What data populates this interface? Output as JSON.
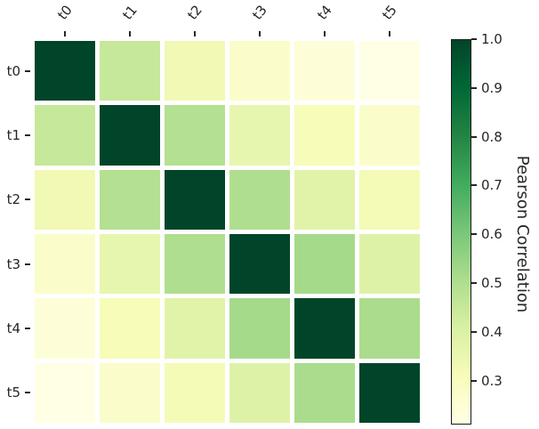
{
  "figure": {
    "background": "#ffffff",
    "text_color": "#262626"
  },
  "chart_data": {
    "type": "heatmap",
    "title": "",
    "x_labels": [
      "t0",
      "t1",
      "t2",
      "t3",
      "t4",
      "t5"
    ],
    "y_labels": [
      "t0",
      "t1",
      "t2",
      "t3",
      "t4",
      "t5"
    ],
    "matrix": [
      [
        1.0,
        0.45,
        0.33,
        0.27,
        0.24,
        0.21
      ],
      [
        0.45,
        1.0,
        0.49,
        0.36,
        0.31,
        0.27
      ],
      [
        0.33,
        0.49,
        1.0,
        0.5,
        0.38,
        0.32
      ],
      [
        0.27,
        0.36,
        0.5,
        1.0,
        0.52,
        0.39
      ],
      [
        0.24,
        0.31,
        0.38,
        0.52,
        1.0,
        0.51
      ],
      [
        0.21,
        0.27,
        0.32,
        0.39,
        0.51,
        1.0
      ]
    ],
    "vmin": 0.21,
    "vmax": 1.0,
    "colormap": {
      "name": "YlGn",
      "anchors": [
        "#ffffe5",
        "#f7fcb9",
        "#d9f0a3",
        "#addd8e",
        "#78c679",
        "#41ab5d",
        "#238443",
        "#006837",
        "#004529"
      ]
    },
    "colorbar": {
      "label": "Pearson Correlation",
      "tick_labels": [
        "1.0",
        "0.9",
        "0.8",
        "0.7",
        "0.6",
        "0.5",
        "0.4",
        "0.3"
      ],
      "tick_values": [
        1.0,
        0.9,
        0.8,
        0.7,
        0.6,
        0.5,
        0.4,
        0.3
      ]
    },
    "cell_gap_color": "#ffffff",
    "legend_position": "right-colorbar",
    "grid": false
  }
}
